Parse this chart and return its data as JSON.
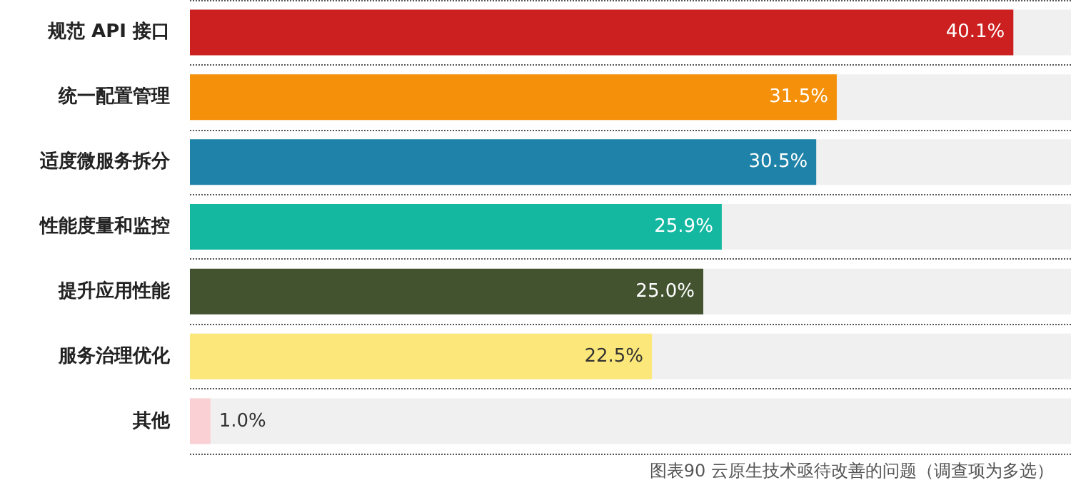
{
  "chart_data": {
    "type": "bar",
    "orientation": "horizontal",
    "categories": [
      "规范 API 接口",
      "统一配置管理",
      "适度微服务拆分",
      "性能度量和监控",
      "提升应用性能",
      "服务治理优化",
      "其他"
    ],
    "values": [
      40.1,
      31.5,
      30.5,
      25.9,
      25.0,
      22.5,
      1.0
    ],
    "colors": [
      "#cc1f1f",
      "#f5900a",
      "#1f82a8",
      "#14b8a0",
      "#435330",
      "#fce77a",
      "#fbd0d4"
    ],
    "value_labels": [
      "40.1%",
      "31.5%",
      "30.5%",
      "25.9%",
      "25.0%",
      "22.5%",
      "1.0%"
    ],
    "grid": "y",
    "annotations": [
      "图表90 云原生技术亟待改善的问题（调查项为多选）"
    ]
  }
}
